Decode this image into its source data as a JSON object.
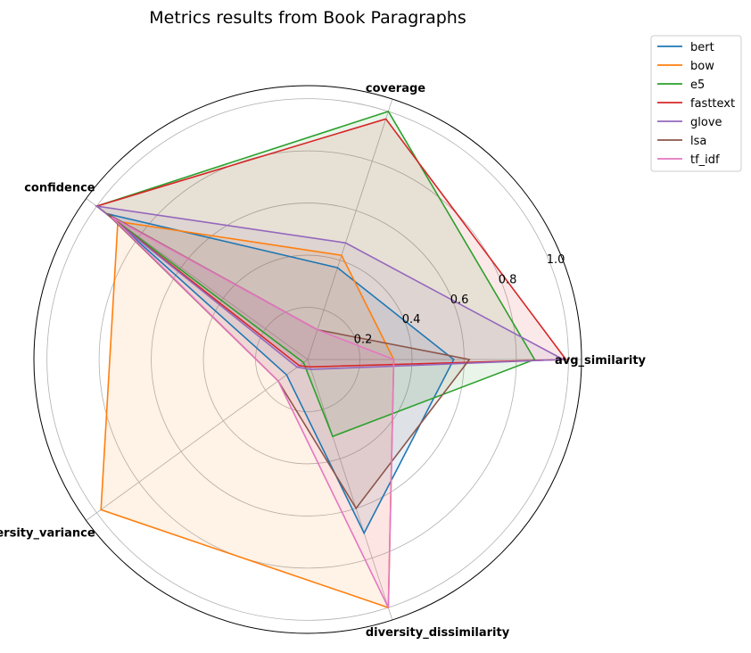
{
  "chart_data": {
    "type": "radar",
    "title": "Metrics results from Book Paragraphs",
    "axes": [
      "avg_similarity",
      "coverage",
      "confidence",
      "diversity_variance",
      "diversity_dissimilarity"
    ],
    "rticks": [
      0.2,
      0.4,
      0.6,
      0.8,
      1.0
    ],
    "rtick_labels": [
      "0.2",
      "0.4",
      "0.6",
      "0.8",
      "1.0"
    ],
    "rlim": [
      0,
      1.05
    ],
    "grid": true,
    "legend_position": "top-right",
    "series": [
      {
        "name": "bert",
        "color": "#1f77b4",
        "values": [
          0.56,
          0.37,
          0.95,
          0.1,
          0.7
        ]
      },
      {
        "name": "bow",
        "color": "#ff7f0e",
        "values": [
          0.33,
          0.42,
          0.9,
          0.98,
          1.0
        ]
      },
      {
        "name": "e5",
        "color": "#2ca02c",
        "values": [
          0.87,
          1.0,
          1.0,
          0.02,
          0.31
        ]
      },
      {
        "name": "fasttext",
        "color": "#d62728",
        "values": [
          0.99,
          0.97,
          1.0,
          0.04,
          0.03
        ]
      },
      {
        "name": "glove",
        "color": "#9467bd",
        "values": [
          0.98,
          0.47,
          1.0,
          0.05,
          0.04
        ]
      },
      {
        "name": "lsa",
        "color": "#8c564b",
        "values": [
          0.62,
          0.12,
          0.95,
          0.14,
          0.6
        ]
      },
      {
        "name": "tf_idf",
        "color": "#e377c2",
        "values": [
          0.33,
          0.12,
          0.93,
          0.14,
          1.0
        ]
      }
    ]
  }
}
